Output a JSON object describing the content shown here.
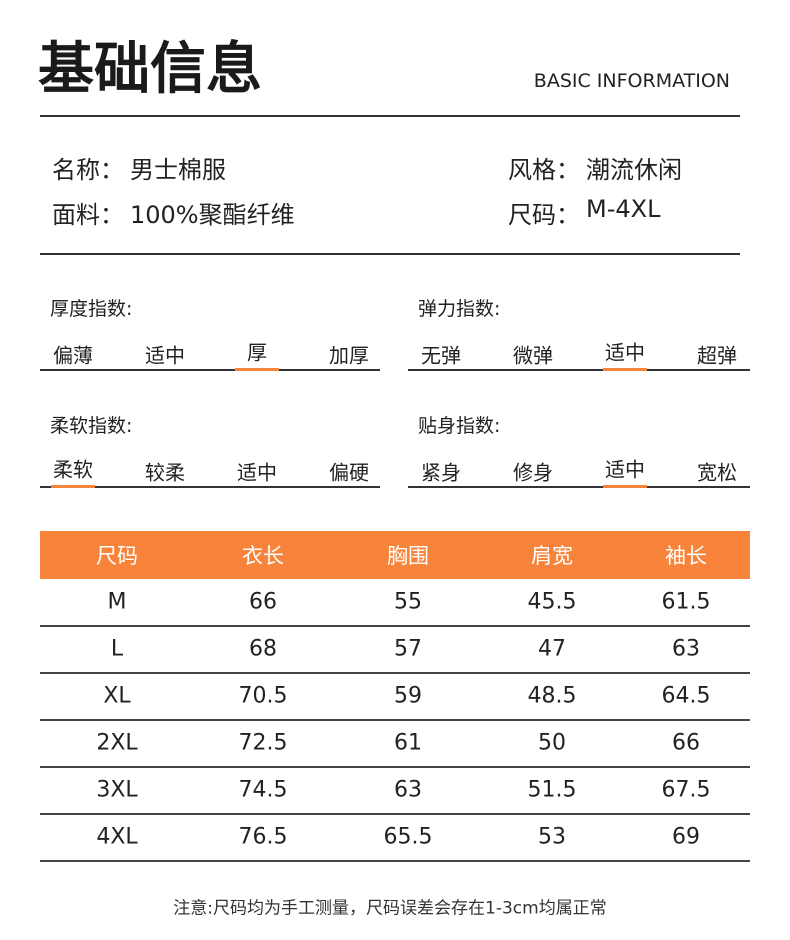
{
  "header": {
    "title": "基础信息",
    "subtitle": "BASIC INFORMATION"
  },
  "info": [
    [
      {
        "label": "名称：",
        "value": "男士棉服"
      },
      {
        "label": "风格：",
        "value": "潮流休闲"
      }
    ],
    [
      {
        "label": "面料：",
        "value": "100%聚酯纤维"
      },
      {
        "label": "尺码：",
        "value": "M-4XL"
      }
    ]
  ],
  "indices": [
    {
      "title": "厚度指数:",
      "options": [
        "偏薄",
        "适中",
        "厚",
        "加厚"
      ],
      "selected": 2
    },
    {
      "title": "弹力指数:",
      "options": [
        "无弹",
        "微弹",
        "适中",
        "超弹"
      ],
      "selected": 2
    },
    {
      "title": "柔软指数:",
      "options": [
        "柔软",
        "较柔",
        "适中",
        "偏硬"
      ],
      "selected": 0
    },
    {
      "title": "贴身指数:",
      "options": [
        "紧身",
        "修身",
        "适中",
        "宽松"
      ],
      "selected": 2
    }
  ],
  "table": {
    "headers": [
      "尺码",
      "衣长",
      "胸围",
      "肩宽",
      "袖长"
    ],
    "rows": [
      [
        "M",
        66,
        55,
        45.5,
        61.5
      ],
      [
        "L",
        68,
        57,
        47,
        63
      ],
      [
        "XL",
        70.5,
        59,
        48.5,
        64.5
      ],
      [
        "2XL",
        72.5,
        61,
        50,
        66
      ],
      [
        "3XL",
        74.5,
        63,
        51.5,
        67.5
      ],
      [
        "4XL",
        76.5,
        65.5,
        53,
        69
      ]
    ]
  },
  "note": "注意:尺码均为手工测量，尺码误差会存在1-3cm均属正常"
}
